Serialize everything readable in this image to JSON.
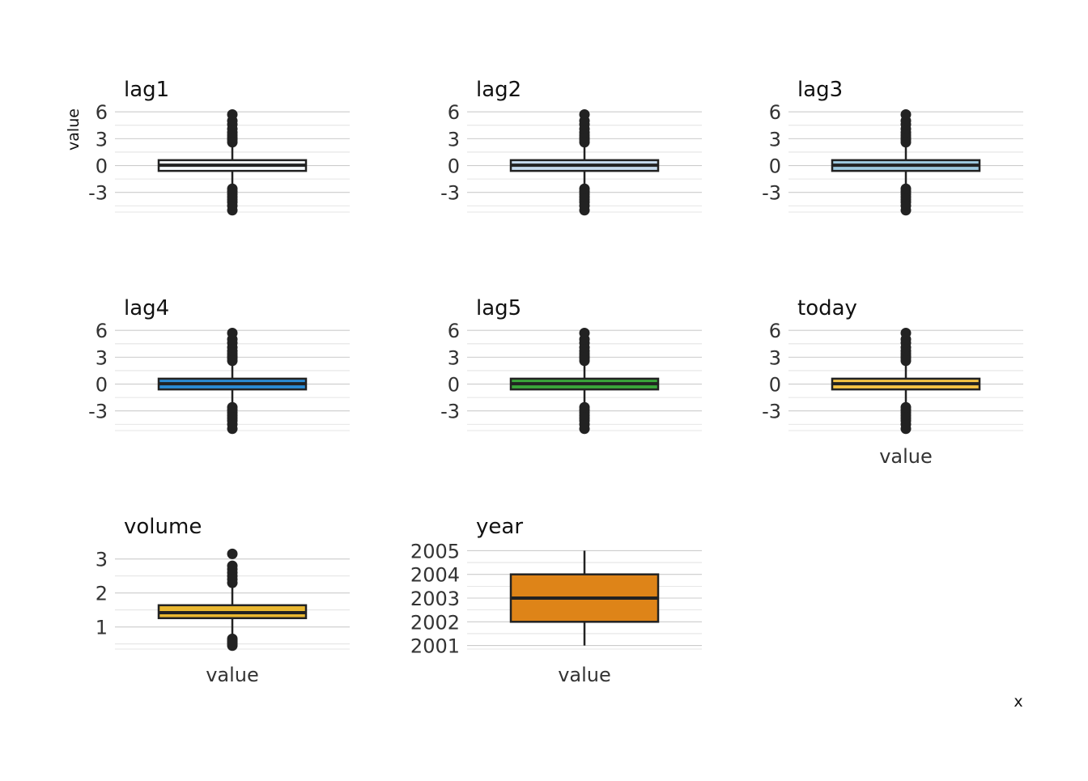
{
  "chart_data": {
    "type": "boxplot",
    "layout": "facet_wrap, 3 columns, free y scales",
    "y_axis_title": "value",
    "x_axis_title": "x",
    "x_tick_label": "value",
    "panels": [
      {
        "name": "lag1",
        "fill": "#f7fbff",
        "ylim": [
          -5.2,
          6.2
        ],
        "ticks": [
          -3,
          0,
          3,
          6
        ],
        "tick_labels": [
          "-3",
          "0",
          "3",
          "6"
        ],
        "minor_ticks": [
          -4.5,
          -1.5,
          1.5,
          4.5
        ],
        "box": {
          "q1": -0.6,
          "median": 0.04,
          "q3": 0.6,
          "whisker_low": -2.4,
          "whisker_high": 2.4
        },
        "outliers": [
          -5.0,
          -4.5,
          -4.1,
          -3.8,
          -3.5,
          -3.2,
          -2.9,
          -2.6,
          2.6,
          2.9,
          3.1,
          3.4,
          3.7,
          4.1,
          4.6,
          5.0,
          5.7
        ]
      },
      {
        "name": "lag2",
        "fill": "#c6dbef",
        "ylim": [
          -5.2,
          6.2
        ],
        "ticks": [
          -3,
          0,
          3,
          6
        ],
        "tick_labels": [
          "-3",
          "0",
          "3",
          "6"
        ],
        "minor_ticks": [
          -4.5,
          -1.5,
          1.5,
          4.5
        ],
        "box": {
          "q1": -0.6,
          "median": 0.04,
          "q3": 0.6,
          "whisker_low": -2.4,
          "whisker_high": 2.4
        },
        "outliers": [
          -5.0,
          -4.5,
          -4.1,
          -3.8,
          -3.5,
          -3.2,
          -2.9,
          -2.6,
          2.6,
          2.9,
          3.1,
          3.4,
          3.7,
          4.1,
          4.6,
          5.0,
          5.7
        ]
      },
      {
        "name": "lag3",
        "fill": "#9ecae1",
        "ylim": [
          -5.2,
          6.2
        ],
        "ticks": [
          -3,
          0,
          3,
          6
        ],
        "tick_labels": [
          "-3",
          "0",
          "3",
          "6"
        ],
        "minor_ticks": [
          -4.5,
          -1.5,
          1.5,
          4.5
        ],
        "box": {
          "q1": -0.6,
          "median": 0.04,
          "q3": 0.6,
          "whisker_low": -2.4,
          "whisker_high": 2.4
        },
        "outliers": [
          -5.0,
          -4.5,
          -4.1,
          -3.8,
          -3.5,
          -3.2,
          -2.9,
          -2.6,
          2.6,
          2.9,
          3.1,
          3.4,
          3.7,
          4.1,
          4.6,
          5.0,
          5.7
        ]
      },
      {
        "name": "lag4",
        "fill": "#2b8cd6",
        "ylim": [
          -5.2,
          6.2
        ],
        "ticks": [
          -3,
          0,
          3,
          6
        ],
        "tick_labels": [
          "-3",
          "0",
          "3",
          "6"
        ],
        "minor_ticks": [
          -4.5,
          -1.5,
          1.5,
          4.5
        ],
        "box": {
          "q1": -0.6,
          "median": 0.04,
          "q3": 0.6,
          "whisker_low": -2.4,
          "whisker_high": 2.4
        },
        "outliers": [
          -5.0,
          -4.5,
          -4.1,
          -3.8,
          -3.5,
          -3.2,
          -2.9,
          -2.6,
          2.6,
          2.9,
          3.1,
          3.4,
          3.7,
          4.1,
          4.6,
          5.0,
          5.7
        ]
      },
      {
        "name": "lag5",
        "fill": "#3aa63a",
        "ylim": [
          -5.2,
          6.2
        ],
        "ticks": [
          -3,
          0,
          3,
          6
        ],
        "tick_labels": [
          "-3",
          "0",
          "3",
          "6"
        ],
        "minor_ticks": [
          -4.5,
          -1.5,
          1.5,
          4.5
        ],
        "box": {
          "q1": -0.6,
          "median": 0.04,
          "q3": 0.6,
          "whisker_low": -2.4,
          "whisker_high": 2.4
        },
        "outliers": [
          -5.0,
          -4.5,
          -4.1,
          -3.8,
          -3.5,
          -3.2,
          -2.9,
          -2.6,
          2.6,
          2.9,
          3.1,
          3.4,
          3.7,
          4.1,
          4.6,
          5.0,
          5.7
        ]
      },
      {
        "name": "today",
        "fill": "#f6c445",
        "ylim": [
          -5.2,
          6.2
        ],
        "ticks": [
          -3,
          0,
          3,
          6
        ],
        "tick_labels": [
          "-3",
          "0",
          "3",
          "6"
        ],
        "minor_ticks": [
          -4.5,
          -1.5,
          1.5,
          4.5
        ],
        "box": {
          "q1": -0.6,
          "median": 0.04,
          "q3": 0.6,
          "whisker_low": -2.4,
          "whisker_high": 2.4
        },
        "outliers": [
          -5.0,
          -4.5,
          -4.1,
          -3.8,
          -3.5,
          -3.2,
          -2.9,
          -2.6,
          2.6,
          2.9,
          3.1,
          3.4,
          3.7,
          4.1,
          4.6,
          5.0,
          5.7
        ]
      },
      {
        "name": "volume",
        "fill": "#e9b730",
        "ylim": [
          0.35,
          3.35
        ],
        "ticks": [
          1,
          2,
          3
        ],
        "tick_labels": [
          "1",
          "2",
          "3"
        ],
        "minor_ticks": [
          0.5,
          1.5,
          2.5
        ],
        "box": {
          "q1": 1.26,
          "median": 1.42,
          "q3": 1.64,
          "whisker_low": 0.7,
          "whisker_high": 2.2
        },
        "outliers": [
          0.45,
          0.5,
          0.55,
          0.6,
          0.65,
          2.3,
          2.4,
          2.5,
          2.6,
          2.7,
          2.8,
          3.15
        ]
      },
      {
        "name": "year",
        "fill": "#de8418",
        "ylim": [
          2000.85,
          2005.15
        ],
        "ticks": [
          2001,
          2002,
          2003,
          2004,
          2005
        ],
        "tick_labels": [
          "2001",
          "2002",
          "2003",
          "2004",
          "2005"
        ],
        "minor_ticks": [
          2001.5,
          2002.5,
          2003.5,
          2004.5
        ],
        "box": {
          "q1": 2002,
          "median": 2003,
          "q3": 2004,
          "whisker_low": 2001,
          "whisker_high": 2005
        },
        "outliers": []
      }
    ],
    "x_tick_label_panels": [
      "today",
      "volume",
      "year"
    ]
  }
}
